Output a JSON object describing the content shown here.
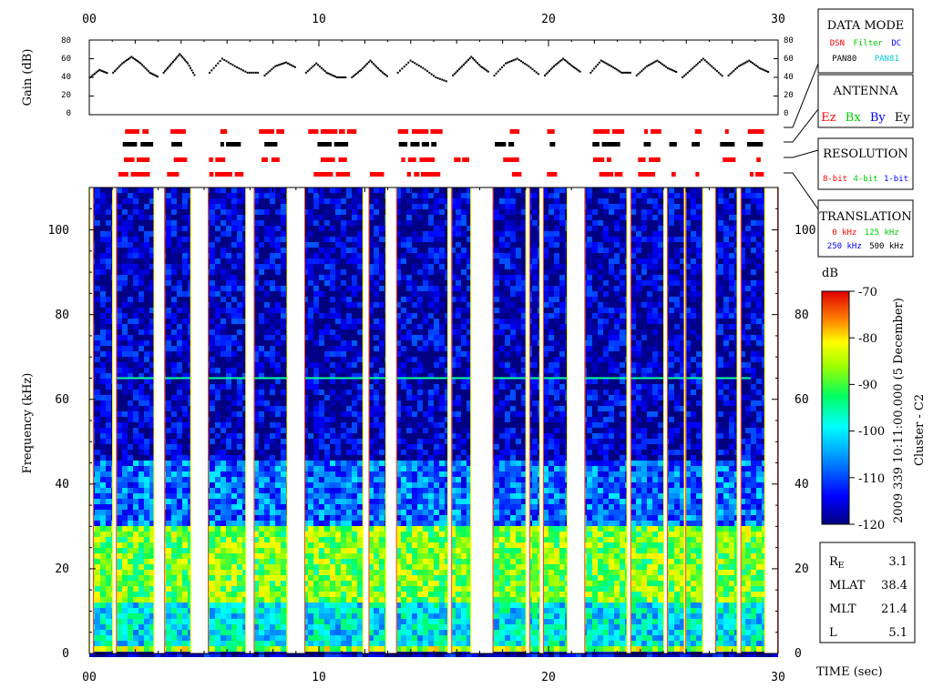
{
  "chart_data": [
    {
      "type": "line",
      "ylabel": "Gain (dB)",
      "ylim": [
        0,
        80
      ],
      "y_ticks": [
        "80",
        "60",
        "40",
        "20",
        "0"
      ],
      "xlim": [
        0,
        30
      ],
      "x_ticks_top": [
        "00",
        "10",
        "20",
        "30"
      ],
      "segments": [
        {
          "t_start": 0.0,
          "t_end": 0.8,
          "levels": [
            40,
            48,
            44
          ]
        },
        {
          "t_start": 1.0,
          "t_end": 3.0,
          "levels": [
            45,
            55,
            62,
            55,
            45,
            40
          ]
        },
        {
          "t_start": 3.2,
          "t_end": 4.6,
          "levels": [
            45,
            55,
            65,
            55,
            40
          ]
        },
        {
          "t_start": 5.2,
          "t_end": 7.4,
          "levels": [
            45,
            60,
            52,
            45,
            45
          ]
        },
        {
          "t_start": 7.6,
          "t_end": 9.0,
          "levels": [
            42,
            52,
            56,
            50
          ]
        },
        {
          "t_start": 9.4,
          "t_end": 11.2,
          "levels": [
            45,
            55,
            45,
            40,
            40
          ]
        },
        {
          "t_start": 11.4,
          "t_end": 13.0,
          "levels": [
            40,
            48,
            58,
            48,
            40
          ]
        },
        {
          "t_start": 13.4,
          "t_end": 15.6,
          "levels": [
            45,
            58,
            50,
            40,
            35
          ]
        },
        {
          "t_start": 15.8,
          "t_end": 17.4,
          "levels": [
            42,
            52,
            62,
            52,
            45
          ]
        },
        {
          "t_start": 17.6,
          "t_end": 19.6,
          "levels": [
            42,
            55,
            60,
            52,
            42
          ]
        },
        {
          "t_start": 19.8,
          "t_end": 21.4,
          "levels": [
            42,
            52,
            60,
            52,
            45
          ]
        },
        {
          "t_start": 21.8,
          "t_end": 23.6,
          "levels": [
            45,
            58,
            52,
            45,
            45
          ]
        },
        {
          "t_start": 23.8,
          "t_end": 25.6,
          "levels": [
            42,
            52,
            58,
            50,
            45
          ]
        },
        {
          "t_start": 25.8,
          "t_end": 27.6,
          "levels": [
            40,
            50,
            60,
            50,
            40
          ]
        },
        {
          "t_start": 27.8,
          "t_end": 29.6,
          "levels": [
            42,
            52,
            58,
            50,
            45
          ]
        }
      ]
    },
    {
      "type": "heatmap",
      "xlabel": "TIME (sec)",
      "ylabel": "Frequency (kHz)",
      "xlim": [
        0,
        30
      ],
      "ylim": [
        0,
        110
      ],
      "x_ticks": [
        "00",
        "10",
        "20",
        "30"
      ],
      "y_ticks": [
        "0",
        "20",
        "40",
        "60",
        "80",
        "100"
      ],
      "colorbar": {
        "unit": "dB",
        "range": [
          -120,
          -70
        ],
        "ticks": [
          "-70",
          "-80",
          "-90",
          "-100",
          "-110",
          "-120"
        ]
      },
      "bands": [
        {
          "freq_range": [
            0,
            2
          ],
          "level_db": -86
        },
        {
          "freq_range": [
            2,
            12
          ],
          "level_db": -100
        },
        {
          "freq_range": [
            12,
            30
          ],
          "level_db": -88
        },
        {
          "freq_range": [
            30,
            45
          ],
          "level_db": -108
        },
        {
          "freq_range": [
            45,
            110
          ],
          "level_db": -117
        }
      ],
      "line_65khz_db": -95,
      "data_gaps_sec": [
        [
          0.0,
          0.2
        ],
        [
          1.0,
          1.2
        ],
        [
          2.8,
          3.3
        ],
        [
          4.4,
          5.2
        ],
        [
          6.8,
          7.2
        ],
        [
          8.6,
          9.4
        ],
        [
          11.9,
          12.2
        ],
        [
          12.9,
          13.4
        ],
        [
          15.6,
          15.8
        ],
        [
          16.6,
          17.6
        ],
        [
          19.0,
          19.2
        ],
        [
          19.6,
          19.8
        ],
        [
          20.8,
          21.6
        ],
        [
          23.4,
          23.6
        ],
        [
          25.0,
          25.2
        ],
        [
          25.9,
          26.0
        ],
        [
          26.7,
          27.3
        ],
        [
          28.2,
          28.4
        ],
        [
          29.4,
          30.0
        ]
      ]
    }
  ],
  "title_vertical": "2009 339 10:11:00.000 (5 December)",
  "spacecraft": "Cluster - C2",
  "legend_boxes": {
    "data_mode": {
      "title": "DATA MODE",
      "items_row1": [
        {
          "text": "DSN",
          "color": "#ff0000"
        },
        {
          "text": "Filter",
          "color": "#00cc00"
        },
        {
          "text": "DC",
          "color": "#0000ff"
        }
      ],
      "items_row2": [
        {
          "text": "PAN80",
          "color": "#000000"
        },
        {
          "text": "PAN81",
          "color": "#00cccc"
        }
      ]
    },
    "antenna": {
      "title": "ANTENNA",
      "items": [
        {
          "text": "Ez",
          "color": "#ff0000"
        },
        {
          "text": "Bx",
          "color": "#00cc00"
        },
        {
          "text": "By",
          "color": "#0000ff"
        },
        {
          "text": "Ey",
          "color": "#000000"
        }
      ]
    },
    "resolution": {
      "title": "RESOLUTION",
      "items": [
        {
          "text": "8-bit",
          "color": "#ff0000"
        },
        {
          "text": "4-bit",
          "color": "#00cc00"
        },
        {
          "text": "1-bit",
          "color": "#0000ff"
        }
      ]
    },
    "translation": {
      "title": "TRANSLATION",
      "items_row1": [
        {
          "text": "0 kHz",
          "color": "#ff0000"
        },
        {
          "text": "125 kHz",
          "color": "#00cc00"
        }
      ],
      "items_row2": [
        {
          "text": "250 kHz",
          "color": "#0000ff"
        },
        {
          "text": "500 kHz",
          "color": "#000000"
        }
      ]
    }
  },
  "status_strips": [
    {
      "color": "#ff0000"
    },
    {
      "color": "#000000"
    },
    {
      "color": "#ff0000"
    },
    {
      "color": "#ff0000"
    }
  ],
  "orbit": [
    {
      "label": "R",
      "subscript": "E",
      "value": "3.1"
    },
    {
      "label": "MLAT",
      "value": "38.4"
    },
    {
      "label": "MLT",
      "value": "21.4"
    },
    {
      "label": "L",
      "value": "5.1"
    }
  ]
}
